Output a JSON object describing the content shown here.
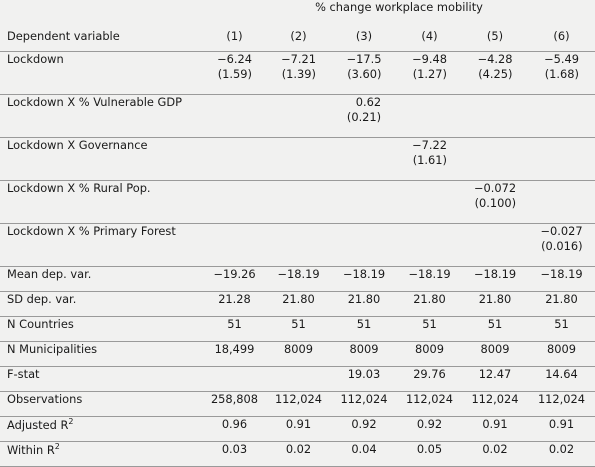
{
  "header": {
    "group_label": "% change workplace mobility",
    "dependent_label": "Dependent variable",
    "columns": [
      "(1)",
      "(2)",
      "(3)",
      "(4)",
      "(5)",
      "(6)"
    ]
  },
  "coef_rows": [
    {
      "label": "Lockdown",
      "cells": [
        {
          "coef": "−6.24",
          "se": "(1.59)"
        },
        {
          "coef": "−7.21",
          "se": "(1.39)"
        },
        {
          "coef": "−17.5",
          "se": "(3.60)"
        },
        {
          "coef": "−9.48",
          "se": "(1.27)"
        },
        {
          "coef": "−4.28",
          "se": "(4.25)"
        },
        {
          "coef": "−5.49",
          "se": "(1.68)"
        }
      ]
    },
    {
      "label": "Lockdown X % Vulnerable GDP",
      "cells": [
        {
          "coef": "",
          "se": ""
        },
        {
          "coef": "",
          "se": ""
        },
        {
          "coef": "0.62",
          "se": "(0.21)"
        },
        {
          "coef": "",
          "se": ""
        },
        {
          "coef": "",
          "se": ""
        },
        {
          "coef": "",
          "se": ""
        }
      ]
    },
    {
      "label": "Lockdown X Governance",
      "cells": [
        {
          "coef": "",
          "se": ""
        },
        {
          "coef": "",
          "se": ""
        },
        {
          "coef": "",
          "se": ""
        },
        {
          "coef": "−7.22",
          "se": "(1.61)"
        },
        {
          "coef": "",
          "se": ""
        },
        {
          "coef": "",
          "se": ""
        }
      ]
    },
    {
      "label": "Lockdown X % Rural Pop.",
      "cells": [
        {
          "coef": "",
          "se": ""
        },
        {
          "coef": "",
          "se": ""
        },
        {
          "coef": "",
          "se": ""
        },
        {
          "coef": "",
          "se": ""
        },
        {
          "coef": "−0.072",
          "se": "(0.100)"
        },
        {
          "coef": "",
          "se": ""
        }
      ]
    },
    {
      "label": "Lockdown X % Primary Forest",
      "cells": [
        {
          "coef": "",
          "se": ""
        },
        {
          "coef": "",
          "se": ""
        },
        {
          "coef": "",
          "se": ""
        },
        {
          "coef": "",
          "se": ""
        },
        {
          "coef": "",
          "se": ""
        },
        {
          "coef": "−0.027",
          "se": "(0.016)"
        }
      ]
    }
  ],
  "stat_rows": [
    {
      "label": "Mean dep. var.",
      "values": [
        "−19.26",
        "−18.19",
        "−18.19",
        "−18.19",
        "−18.19",
        "−18.19"
      ]
    },
    {
      "label": "SD dep. var.",
      "values": [
        "21.28",
        "21.80",
        "21.80",
        "21.80",
        "21.80",
        "21.80"
      ]
    },
    {
      "label": "N Countries",
      "values": [
        "51",
        "51",
        "51",
        "51",
        "51",
        "51"
      ]
    },
    {
      "label": "N Municipalities",
      "values": [
        "18,499",
        "8009",
        "8009",
        "8009",
        "8009",
        "8009"
      ]
    },
    {
      "label": "F-stat",
      "values": [
        "",
        "",
        "19.03",
        "29.76",
        "12.47",
        "14.64"
      ]
    },
    {
      "label": "Observations",
      "values": [
        "258,808",
        "112,024",
        "112,024",
        "112,024",
        "112,024",
        "112,024"
      ]
    },
    {
      "label": "Adjusted R",
      "sup": "2",
      "values": [
        "0.96",
        "0.91",
        "0.92",
        "0.92",
        "0.91",
        "0.91"
      ]
    },
    {
      "label": "Within R",
      "sup": "2",
      "values": [
        "0.03",
        "0.02",
        "0.04",
        "0.05",
        "0.02",
        "0.02"
      ]
    }
  ]
}
